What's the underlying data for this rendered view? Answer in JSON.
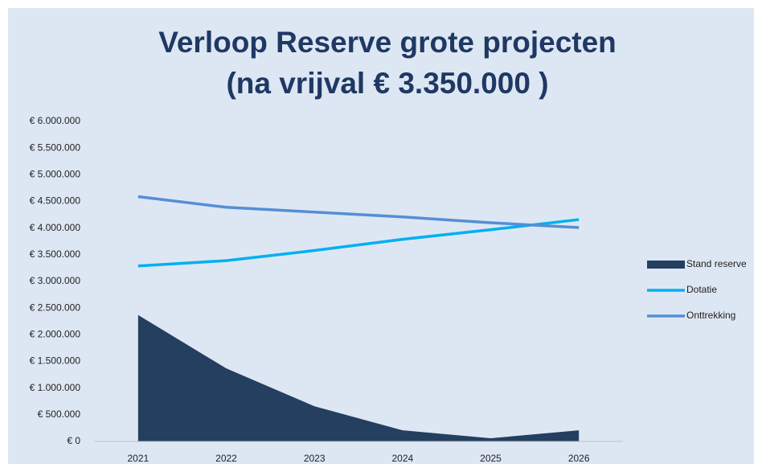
{
  "chart_data": {
    "type": "line",
    "title": [
      "Verloop Reserve grote projecten",
      "(na vrijval € 3.350.000 )"
    ],
    "categories": [
      "2021",
      "2022",
      "2023",
      "2024",
      "2025",
      "2026"
    ],
    "series": [
      {
        "name": "Stand reserve",
        "type": "area",
        "color": "#243f60",
        "values": [
          2370000,
          1370000,
          660000,
          210000,
          60000,
          210000
        ]
      },
      {
        "name": "Dotatie",
        "type": "line",
        "color": "#00b0f0",
        "values": [
          3290000,
          3390000,
          3580000,
          3790000,
          3970000,
          4160000
        ]
      },
      {
        "name": "Onttrekking",
        "type": "line",
        "color": "#558ed5",
        "values": [
          4590000,
          4390000,
          4300000,
          4210000,
          4100000,
          4010000
        ]
      }
    ],
    "ylim": [
      0,
      6000000
    ],
    "yticks": [
      {
        "value": 0,
        "label": "€ 0"
      },
      {
        "value": 500000,
        "label": "€ 500.000"
      },
      {
        "value": 1000000,
        "label": "€ 1.000.000"
      },
      {
        "value": 1500000,
        "label": "€ 1.500.000"
      },
      {
        "value": 2000000,
        "label": "€ 2.000.000"
      },
      {
        "value": 2500000,
        "label": "€ 2.500.000"
      },
      {
        "value": 3000000,
        "label": "€ 3.000.000"
      },
      {
        "value": 3500000,
        "label": "€ 3.500.000"
      },
      {
        "value": 4000000,
        "label": "€ 4.000.000"
      },
      {
        "value": 4500000,
        "label": "€ 4.500.000"
      },
      {
        "value": 5000000,
        "label": "€ 5.000.000"
      },
      {
        "value": 5500000,
        "label": "€ 5.500.000"
      },
      {
        "value": 6000000,
        "label": "€ 6.000.000"
      }
    ],
    "grid": false,
    "legend": "right"
  }
}
